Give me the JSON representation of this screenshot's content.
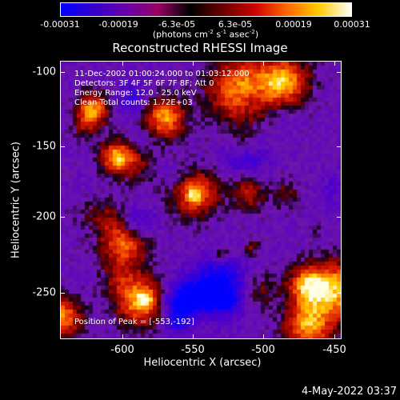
{
  "colorbar": {
    "tick_labels": [
      "-0.00031",
      "-0.00019",
      "-6.3e-05",
      "6.3e-05",
      "0.00019",
      "0.00031"
    ],
    "units_text": "(photons cm",
    "units_exp1": "-2",
    "units_mid1": " s",
    "units_exp2": "-1",
    "units_mid2": " asec",
    "units_exp3": "-2",
    "units_end": ")",
    "gradient_colors": [
      "#0000ff",
      "#3300cc",
      "#6600aa",
      "#990066",
      "#000000",
      "#660000",
      "#cc0000",
      "#ff6600",
      "#ffcc00",
      "#ffffff"
    ]
  },
  "plot": {
    "title": "Reconstructed RHESSI Image",
    "annotations": [
      "11-Dec-2002 01:00:24.000 to 01:03:12.000",
      "Detectors: 3F 4F 5F 6F 7F 8F; Att 0",
      "Energy Range: 12.0 - 25.0 keV",
      "Clean     Total counts: 1.72E+03"
    ],
    "peak_text": "Position of Peak = [-553,-192]",
    "x_axis": {
      "label": "Heliocentric X (arcsec)",
      "ticks": [
        "-600",
        "-550",
        "-500",
        "-450"
      ]
    },
    "y_axis": {
      "label": "Heliocentric Y (arcsec)",
      "ticks": [
        "-100",
        "-150",
        "-200",
        "-250"
      ]
    }
  },
  "footer": {
    "date": "4-May-2022 03:37"
  }
}
